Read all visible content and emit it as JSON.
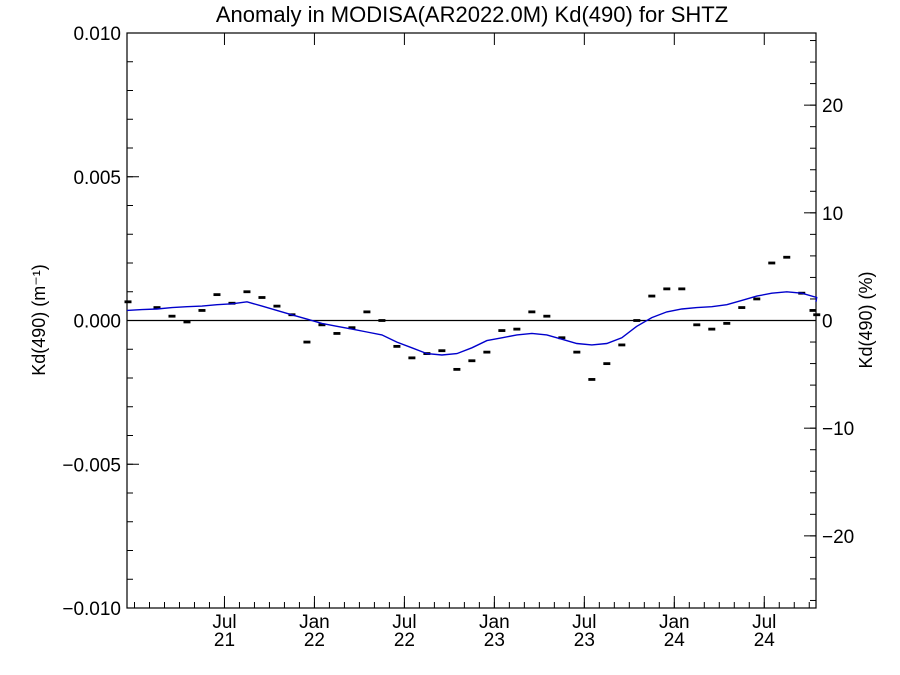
{
  "chart_data": {
    "type": "scatter",
    "title": "Anomaly in MODISA(AR2022.0M) Kd(490) for SHTZ",
    "ylabel_left": "Kd(490) (m⁻¹)",
    "ylabel_right": "Kd(490) (%)",
    "ylim_left": [
      -0.01,
      0.01
    ],
    "ylim_right": [
      -26.7,
      26.7
    ],
    "yticks_left": [
      {
        "value": 0.01,
        "label": "0.010"
      },
      {
        "value": 0.005,
        "label": "0.005"
      },
      {
        "value": 0.0,
        "label": "0.000"
      },
      {
        "value": -0.005,
        "label": "−0.005"
      },
      {
        "value": -0.01,
        "label": "−0.010"
      }
    ],
    "yticks_right": [
      {
        "value": 20,
        "label": "20"
      },
      {
        "value": 10,
        "label": "10"
      },
      {
        "value": 0,
        "label": "0"
      },
      {
        "value": -10,
        "label": "−10"
      },
      {
        "value": -20,
        "label": "−20"
      }
    ],
    "xlim": [
      "2020-12",
      "2024-10"
    ],
    "xticks": [
      {
        "date": "2021-07",
        "month": "Jul",
        "year": "21"
      },
      {
        "date": "2022-01",
        "month": "Jan",
        "year": "22"
      },
      {
        "date": "2022-07",
        "month": "Jul",
        "year": "22"
      },
      {
        "date": "2023-01",
        "month": "Jan",
        "year": "23"
      },
      {
        "date": "2023-07",
        "month": "Jul",
        "year": "23"
      },
      {
        "date": "2024-01",
        "month": "Jan",
        "year": "24"
      },
      {
        "date": "2024-07",
        "month": "Jul",
        "year": "24"
      }
    ],
    "zero_line": 0.0,
    "series": [
      {
        "style": "markers",
        "color": "#000000",
        "points": [
          {
            "x": "2021-01",
            "y": 0.00065
          },
          {
            "x": "2021-02",
            "y": 0.00045
          },
          {
            "x": "2021-03",
            "y": 0.00015
          },
          {
            "x": "2021-04",
            "y": -5e-05
          },
          {
            "x": "2021-05",
            "y": 0.00035
          },
          {
            "x": "2021-06",
            "y": 0.0009
          },
          {
            "x": "2021-07",
            "y": 0.0006
          },
          {
            "x": "2021-08",
            "y": 0.001
          },
          {
            "x": "2021-09",
            "y": 0.0008
          },
          {
            "x": "2021-10",
            "y": 0.0005
          },
          {
            "x": "2021-11",
            "y": 0.0002
          },
          {
            "x": "2021-12",
            "y": -0.00075
          },
          {
            "x": "2022-01",
            "y": -0.00015
          },
          {
            "x": "2022-02",
            "y": -0.00045
          },
          {
            "x": "2022-03",
            "y": -0.00025
          },
          {
            "x": "2022-04",
            "y": 0.0003
          },
          {
            "x": "2022-05",
            "y": -0.0
          },
          {
            "x": "2022-06",
            "y": -0.0009
          },
          {
            "x": "2022-07",
            "y": -0.0013
          },
          {
            "x": "2022-08",
            "y": -0.00115
          },
          {
            "x": "2022-09",
            "y": -0.00105
          },
          {
            "x": "2022-10",
            "y": -0.0017
          },
          {
            "x": "2022-11",
            "y": -0.0014
          },
          {
            "x": "2022-12",
            "y": -0.0011
          },
          {
            "x": "2023-01",
            "y": -0.00035
          },
          {
            "x": "2023-02",
            "y": -0.0003
          },
          {
            "x": "2023-03",
            "y": 0.0003
          },
          {
            "x": "2023-04",
            "y": 0.00015
          },
          {
            "x": "2023-05",
            "y": -0.0006
          },
          {
            "x": "2023-06",
            "y": -0.0011
          },
          {
            "x": "2023-07",
            "y": -0.00205
          },
          {
            "x": "2023-08",
            "y": -0.0015
          },
          {
            "x": "2023-09",
            "y": -0.00085
          },
          {
            "x": "2023-10",
            "y": 0.0
          },
          {
            "x": "2023-11",
            "y": 0.00085
          },
          {
            "x": "2023-12",
            "y": 0.0011
          },
          {
            "x": "2024-01",
            "y": 0.0011
          },
          {
            "x": "2024-02",
            "y": -0.00015
          },
          {
            "x": "2024-03",
            "y": -0.0003
          },
          {
            "x": "2024-04",
            "y": -0.0001
          },
          {
            "x": "2024-05",
            "y": 0.00045
          },
          {
            "x": "2024-06",
            "y": 0.00075
          },
          {
            "x": "2024-07",
            "y": 0.002
          },
          {
            "x": "2024-08",
            "y": 0.0022
          },
          {
            "x": "2024-09",
            "y": 0.00095
          },
          {
            "x": "2024-10",
            "y": 0.0002
          },
          {
            "x": "2024-10",
            "y": 0.00035
          }
        ]
      },
      {
        "style": "line",
        "color": "#0000cc",
        "points": [
          {
            "x": "2020-12",
            "y": 0.00035
          },
          {
            "x": "2021-01",
            "y": 0.00038
          },
          {
            "x": "2021-02",
            "y": 0.0004
          },
          {
            "x": "2021-03",
            "y": 0.00045
          },
          {
            "x": "2021-04",
            "y": 0.00048
          },
          {
            "x": "2021-05",
            "y": 0.0005
          },
          {
            "x": "2021-06",
            "y": 0.00055
          },
          {
            "x": "2021-07",
            "y": 0.00058
          },
          {
            "x": "2021-08",
            "y": 0.00065
          },
          {
            "x": "2021-09",
            "y": 0.0005
          },
          {
            "x": "2021-10",
            "y": 0.00035
          },
          {
            "x": "2021-11",
            "y": 0.0002
          },
          {
            "x": "2021-12",
            "y": 5e-05
          },
          {
            "x": "2022-01",
            "y": -0.0001
          },
          {
            "x": "2022-02",
            "y": -0.0002
          },
          {
            "x": "2022-03",
            "y": -0.0003
          },
          {
            "x": "2022-04",
            "y": -0.0004
          },
          {
            "x": "2022-05",
            "y": -0.0005
          },
          {
            "x": "2022-06",
            "y": -0.00075
          },
          {
            "x": "2022-07",
            "y": -0.00095
          },
          {
            "x": "2022-08",
            "y": -0.00115
          },
          {
            "x": "2022-09",
            "y": -0.0012
          },
          {
            "x": "2022-10",
            "y": -0.00115
          },
          {
            "x": "2022-11",
            "y": -0.00095
          },
          {
            "x": "2022-12",
            "y": -0.0007
          },
          {
            "x": "2023-01",
            "y": -0.0006
          },
          {
            "x": "2023-02",
            "y": -0.0005
          },
          {
            "x": "2023-03",
            "y": -0.00045
          },
          {
            "x": "2023-04",
            "y": -0.0005
          },
          {
            "x": "2023-05",
            "y": -0.00065
          },
          {
            "x": "2023-06",
            "y": -0.0008
          },
          {
            "x": "2023-07",
            "y": -0.00085
          },
          {
            "x": "2023-08",
            "y": -0.0008
          },
          {
            "x": "2023-09",
            "y": -0.0006
          },
          {
            "x": "2023-10",
            "y": -0.0002
          },
          {
            "x": "2023-11",
            "y": 0.0001
          },
          {
            "x": "2023-12",
            "y": 0.0003
          },
          {
            "x": "2024-01",
            "y": 0.0004
          },
          {
            "x": "2024-02",
            "y": 0.00045
          },
          {
            "x": "2024-03",
            "y": 0.00048
          },
          {
            "x": "2024-04",
            "y": 0.00055
          },
          {
            "x": "2024-05",
            "y": 0.0007
          },
          {
            "x": "2024-06",
            "y": 0.00085
          },
          {
            "x": "2024-07",
            "y": 0.00095
          },
          {
            "x": "2024-08",
            "y": 0.001
          },
          {
            "x": "2024-09",
            "y": 0.00095
          },
          {
            "x": "2024-10",
            "y": 0.0008
          },
          {
            "x": "2024-10",
            "y": 0.00065
          }
        ]
      }
    ],
    "grid": false,
    "legend": "none"
  }
}
